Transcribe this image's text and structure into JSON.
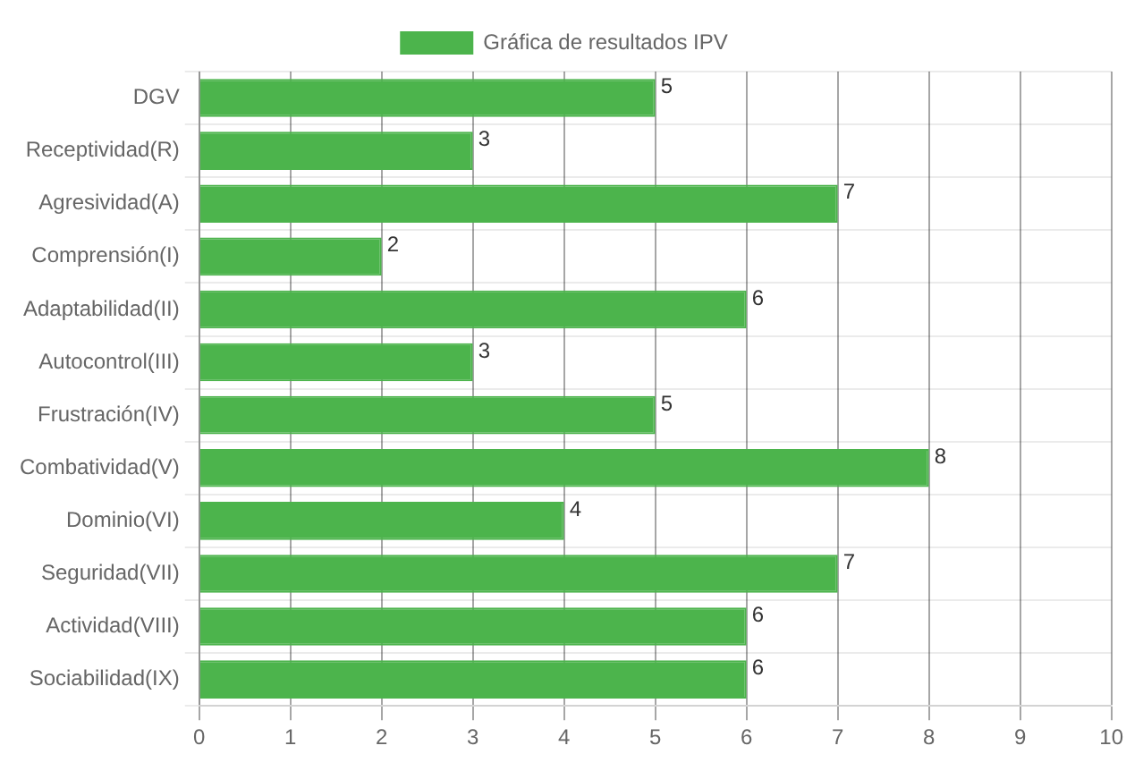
{
  "chart_data": {
    "type": "bar",
    "orientation": "horizontal",
    "categories": [
      "DGV",
      "Receptividad(R)",
      "Agresividad(A)",
      "Comprensión(I)",
      "Adaptabilidad(II)",
      "Autocontrol(III)",
      "Frustración(IV)",
      "Combatividad(V)",
      "Dominio(VI)",
      "Seguridad(VII)",
      "Actividad(VIII)",
      "Sociabilidad(IX)"
    ],
    "series": [
      {
        "name": "Gráfica de resultados IPV",
        "color": "#4cb44c",
        "values": [
          5,
          3,
          7,
          2,
          6,
          3,
          5,
          8,
          4,
          7,
          6,
          6
        ]
      }
    ],
    "xlim": [
      0,
      10
    ],
    "xticks": [
      0,
      1,
      2,
      3,
      4,
      5,
      6,
      7,
      8,
      9,
      10
    ],
    "grid": true,
    "legend": "top",
    "data_labels": true
  }
}
